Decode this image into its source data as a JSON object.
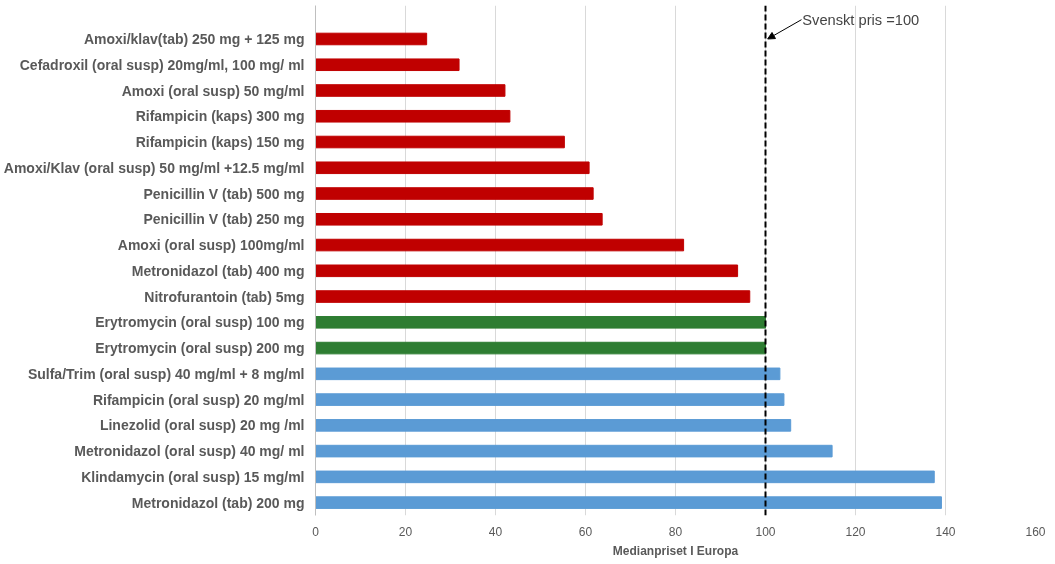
{
  "chart_data": {
    "type": "bar",
    "orientation": "horizontal",
    "xlabel": "Medianpriset I Europa",
    "categories": [
      "Amoxi/klav(tab) 250 mg + 125 mg",
      "Cefadroxil (oral susp) 20mg/ml, 100 mg/ ml",
      "Amoxi (oral susp) 50 mg/ml",
      "Rifampicin (kaps) 300 mg",
      "Rifampicin (kaps) 150 mg",
      "Amoxi/Klav (oral susp) 50 mg/ml +12.5 mg/ml",
      "Penicillin V (tab) 500 mg",
      "Penicillin V (tab) 250 mg",
      "Amoxi (oral susp) 100mg/ml",
      "Metronidazol (tab) 400 mg",
      "Nitrofurantoin (tab) 5mg",
      "Erytromycin (oral susp) 100 mg",
      "Erytromycin (oral susp) 200 mg",
      "Sulfa/Trim (oral susp) 40 mg/ml + 8 mg/ml",
      "Rifampicin (oral susp) 20 mg/ml",
      "Linezolid (oral susp) 20 mg /ml",
      "Metronidazol (oral susp) 40 mg/ ml",
      "Klindamycin (oral susp) 15 mg/ml",
      "Metronidazol (tab) 200 mg"
    ],
    "values": [
      24.7,
      31.9,
      42.1,
      43.2,
      55.3,
      60.8,
      61.7,
      63.7,
      81.8,
      93.8,
      96.5,
      100,
      100,
      103.2,
      104.1,
      105.6,
      114.8,
      137.5,
      139.1
    ],
    "colors": [
      "#c00000",
      "#c00000",
      "#c00000",
      "#c00000",
      "#c00000",
      "#c00000",
      "#c00000",
      "#c00000",
      "#c00000",
      "#c00000",
      "#c00000",
      "#2e7d32",
      "#2e7d32",
      "#5b9bd5",
      "#5b9bd5",
      "#5b9bd5",
      "#5b9bd5",
      "#5b9bd5",
      "#5b9bd5"
    ],
    "xlim": [
      0,
      160
    ],
    "xticks": [
      0,
      20,
      40,
      60,
      80,
      100,
      120,
      140,
      160
    ],
    "grid": "x",
    "ref_lines": [
      {
        "axis": "x",
        "value": 100,
        "label": "Svenskt pris =100",
        "color": "#000000",
        "line_style": "dashed"
      }
    ]
  }
}
